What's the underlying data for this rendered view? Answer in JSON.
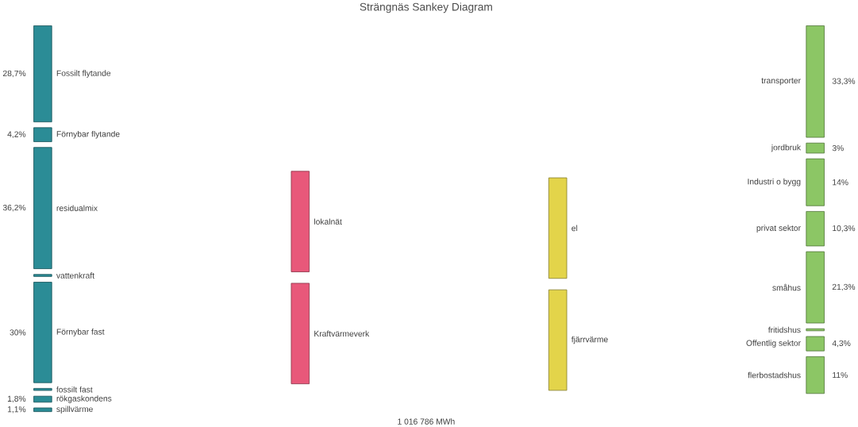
{
  "chart_data": {
    "type": "other",
    "title": "Strängnäs Sankey Diagram",
    "categories": [
      "Fossilt flytande",
      "Förnybar flytande",
      "residualmix",
      "vattenkraft",
      "Förnybar fast",
      "fossilt fast",
      "rökgaskondens",
      "spillvärme",
      "lokalnät",
      "Kraftvärmeverk",
      "el",
      "fjärrvärme",
      "transporter",
      "jordbruk",
      "Industri o bygg",
      "privat sektor",
      "småhus",
      "fritidshus",
      "Offentlig sektor",
      "flerbostadshus"
    ],
    "values": [
      28.7,
      4.2,
      36.2,
      null,
      30,
      null,
      1.8,
      1.1,
      null,
      null,
      null,
      null,
      33.3,
      3,
      14,
      10.3,
      21.3,
      null,
      4.3,
      11
    ],
    "value_labels": [
      "28,7%",
      "4,2%",
      "36,2%",
      null,
      "30%",
      null,
      "1,8%",
      "1,1%",
      null,
      null,
      null,
      null,
      "33,3%",
      "3%",
      "14%",
      "10,3%",
      "21,3%",
      null,
      "4,3%",
      "11%"
    ],
    "colors": [
      "#2b8c96",
      "#2b8c96",
      "#2b8c96",
      "#2b8c96",
      "#2b8c96",
      "#2b8c96",
      "#2b8c96",
      "#2b8c96",
      "#e8587a",
      "#e8587a",
      "#e3d44a",
      "#e3d44a",
      "#8cc665",
      "#8cc665",
      "#8cc665",
      "#8cc665",
      "#8cc665",
      "#8cc665",
      "#8cc665",
      "#8cc665"
    ],
    "annotations": [
      "1 016 786 MWh"
    ]
  }
}
